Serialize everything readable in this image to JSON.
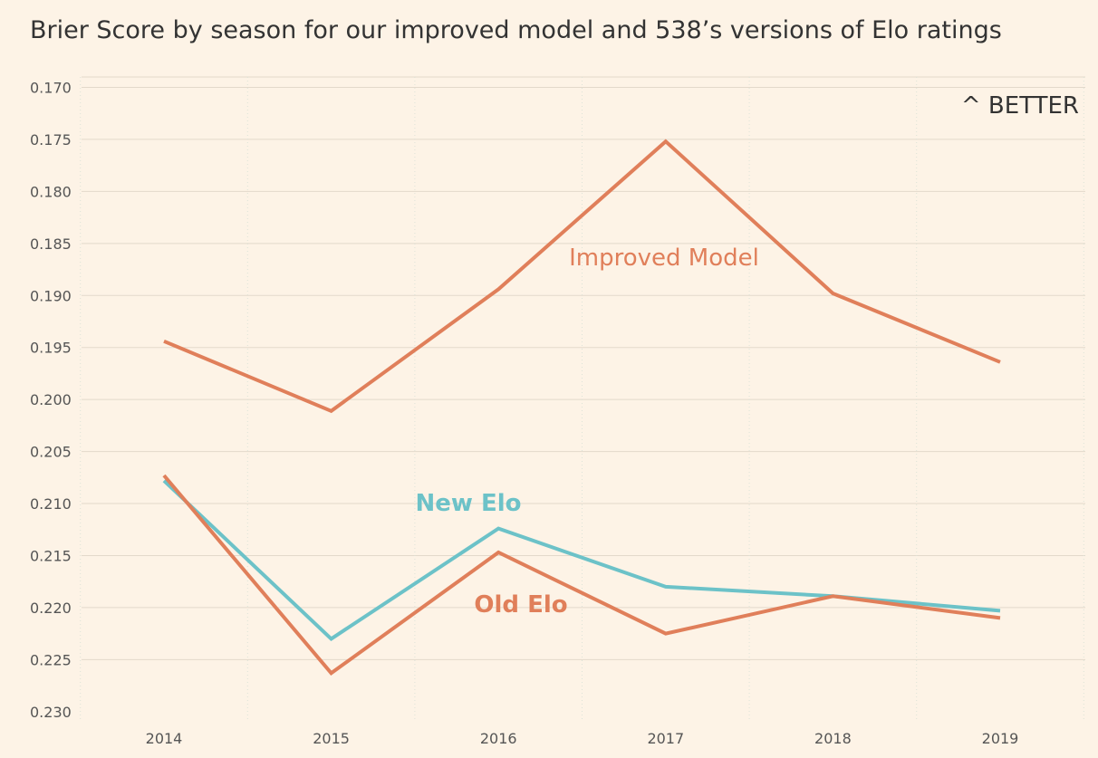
{
  "chart_data": {
    "type": "line",
    "title": "Brier Score by season for our improved model and 538’s versions of Elo ratings",
    "annotation": "^ BETTER",
    "categories": [
      "2014",
      "2015",
      "2016",
      "2017",
      "2018",
      "2019"
    ],
    "ylim": [
      0.23,
      0.17
    ],
    "y_axis_reversed": true,
    "yticks": [
      "0.170",
      "0.175",
      "0.180",
      "0.185",
      "0.190",
      "0.195",
      "0.200",
      "0.205",
      "0.210",
      "0.215",
      "0.220",
      "0.225",
      "0.230"
    ],
    "grid": true,
    "legend": "inline labels on lines",
    "series": [
      {
        "name": "Improved Model",
        "values": [
          0.1944,
          0.2011,
          0.1894,
          0.1752,
          0.1898,
          0.1964
        ],
        "color": "#e07f5a"
      },
      {
        "name": "New Elo",
        "values": [
          0.2078,
          0.223,
          0.2124,
          0.218,
          0.2189,
          0.2203
        ],
        "color": "#6cc2c8"
      },
      {
        "name": "Old Elo",
        "values": [
          0.2073,
          0.2263,
          0.2147,
          0.2225,
          0.2189,
          0.221
        ],
        "color": "#e07f5a"
      }
    ]
  }
}
